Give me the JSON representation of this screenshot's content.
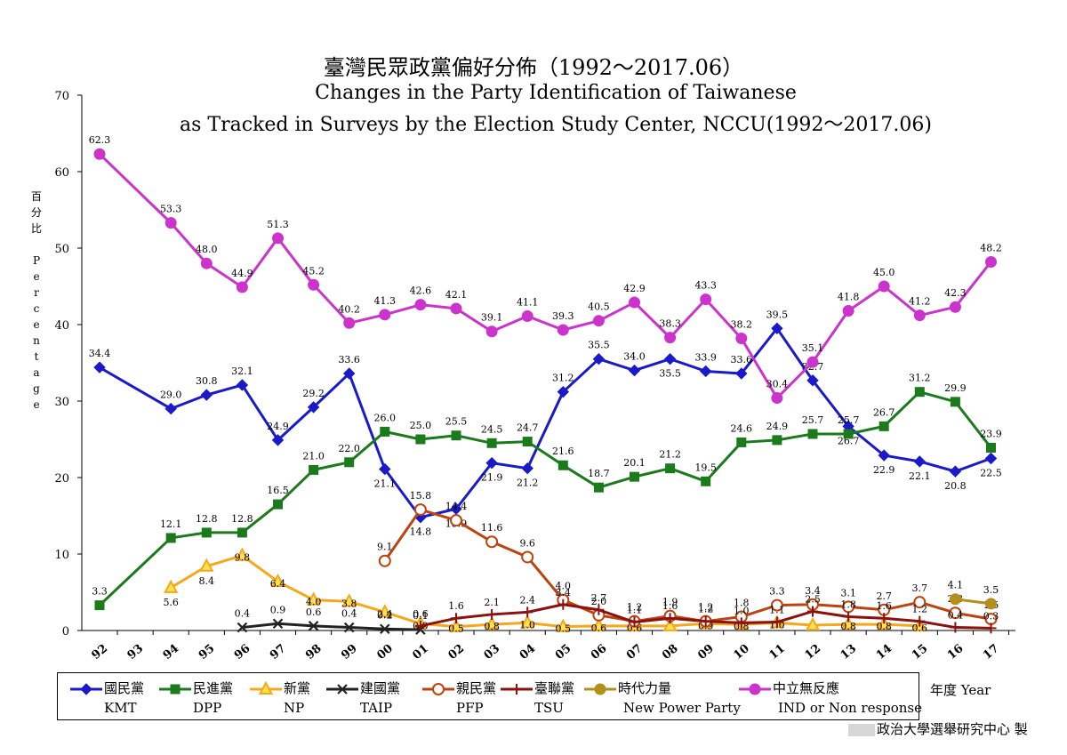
{
  "title_zh": "臺灣民眾政黨偏好分佈（1992～2017.06）",
  "title_en_line1": "Changes in the Party Identification of Taiwanese",
  "title_en_line2": "as Tracked in Surveys by the Election Study Center, NCCU(1992～2017.06)",
  "ylabel_chars": [
    "百",
    "分",
    "比",
    "",
    "P",
    "e",
    "r",
    "c",
    "e",
    "n",
    "t",
    "a",
    "g",
    "e"
  ],
  "year_label": "年度 Year",
  "credit": "政治大學選舉研究中心 製",
  "colors": {
    "KMT": "#1a1aca",
    "DPP": "#1b7a1b",
    "NP": "#f5a81c",
    "TAIP": "#222222",
    "PFP": "#bb4411",
    "TSU": "#8b1010",
    "NPP": "#b38f1c",
    "IND": "#cc33cc"
  },
  "chart_data": {
    "type": "line",
    "title": "Changes in the Party Identification of Taiwanese",
    "ylabel": "百分比 Percentage",
    "xlabel": "年度 Year",
    "ylim": [
      0,
      70
    ],
    "yticks": [
      0,
      10,
      20,
      30,
      40,
      50,
      60,
      70
    ],
    "categories": [
      "92",
      "93",
      "94",
      "95",
      "96",
      "97",
      "98",
      "99",
      "00",
      "01",
      "02",
      "03",
      "04",
      "05",
      "06",
      "07",
      "08",
      "09",
      "10",
      "11",
      "12",
      "13",
      "14",
      "15",
      "16",
      "17"
    ],
    "series": [
      {
        "key": "KMT",
        "name": "國民黨",
        "name_en": "KMT",
        "marker": "diamond",
        "values": [
          34.4,
          null,
          29.0,
          30.8,
          32.1,
          24.9,
          29.2,
          33.6,
          21.1,
          14.8,
          15.9,
          21.9,
          21.2,
          31.2,
          35.5,
          34.0,
          35.5,
          33.9,
          33.6,
          39.5,
          32.7,
          26.7,
          22.9,
          22.1,
          20.8,
          22.5
        ],
        "labels": [
          "34.4",
          "",
          "29.0",
          "30.8",
          "32.1",
          "24.9",
          "29.2",
          "33.6",
          "21.1",
          "14.8",
          "15.9",
          "21.9",
          "21.2",
          "31.2",
          "35.5",
          "34.0",
          "35.5",
          "33.9",
          "33.6",
          "39.5",
          "32.7",
          "26.7",
          "22.9",
          "22.1",
          "20.8",
          "22.5"
        ]
      },
      {
        "key": "DPP",
        "name": "民進黨",
        "name_en": "DPP",
        "marker": "square",
        "values": [
          3.3,
          null,
          12.1,
          12.8,
          12.8,
          16.5,
          21.0,
          22.0,
          26.0,
          25.0,
          25.5,
          24.5,
          24.7,
          21.6,
          18.7,
          20.1,
          21.2,
          19.5,
          24.6,
          24.9,
          25.7,
          25.7,
          26.7,
          31.2,
          29.9,
          23.9
        ],
        "labels": [
          "3.3",
          "",
          "12.1",
          "12.8",
          "12.8",
          "16.5",
          "21.0",
          "22.0",
          "26.0",
          "25.0",
          "25.5",
          "24.5",
          "24.7",
          "21.6",
          "18.7",
          "20.1",
          "21.2",
          "19.5",
          "24.6",
          "24.9",
          "25.7",
          "25.7",
          "26.7",
          "31.2",
          "29.9",
          "23.9"
        ]
      },
      {
        "key": "NP",
        "name": "新黨",
        "name_en": "NP",
        "marker": "triangle",
        "values": [
          null,
          null,
          5.6,
          8.4,
          9.8,
          6.4,
          4.0,
          3.8,
          2.4,
          0.9,
          0.5,
          0.8,
          1.0,
          0.5,
          0.6,
          0.6,
          0.6,
          0.9,
          0.8,
          1.0,
          0.7,
          0.8,
          0.8,
          0.6,
          null,
          null
        ],
        "labels": [
          "",
          "",
          "5.6",
          "8.4",
          "9.8",
          "6.4",
          "4.0",
          "3.8",
          "2.4",
          "0.9",
          "0.5",
          "0.8",
          "1.0",
          "0.5",
          "0.6",
          "0.6",
          "",
          "0.9",
          "0.8",
          "1.0",
          "",
          "0.8",
          "0.8",
          "0.6",
          "",
          ""
        ]
      },
      {
        "key": "TAIP",
        "name": "建國黨",
        "name_en": "TAIP",
        "marker": "x",
        "values": [
          null,
          null,
          null,
          null,
          0.4,
          0.9,
          0.6,
          0.4,
          0.2,
          0.1,
          null,
          null,
          null,
          null,
          null,
          null,
          null,
          null,
          null,
          null,
          null,
          null,
          null,
          null,
          null,
          null
        ],
        "labels": [
          "",
          "",
          "",
          "",
          "0.4",
          "0.9",
          "0.6",
          "0.4",
          "0.2",
          "0.1",
          "",
          "",
          "",
          "",
          "",
          "",
          "",
          "",
          "",
          "",
          "",
          "",
          "",
          "",
          "",
          ""
        ]
      },
      {
        "key": "PFP",
        "name": "親民黨",
        "name_en": "PFP",
        "marker": "circle",
        "values": [
          null,
          null,
          null,
          null,
          null,
          null,
          null,
          null,
          9.1,
          15.8,
          14.4,
          11.6,
          9.6,
          4.0,
          2.0,
          1.2,
          1.9,
          1.2,
          1.8,
          3.3,
          3.4,
          3.1,
          2.7,
          3.7,
          2.3,
          1.5
        ],
        "labels": [
          "",
          "",
          "",
          "",
          "",
          "",
          "",
          "",
          "9.1",
          "15.8",
          "14.4",
          "11.6",
          "9.6",
          "4.0",
          "2.0",
          "1.2",
          "1.9",
          "1.2",
          "1.8",
          "3.3",
          "3.4",
          "3.1",
          "2.7",
          "3.7",
          "2.3",
          "1.5"
        ]
      },
      {
        "key": "TSU",
        "name": "臺聯黨",
        "name_en": "TSU",
        "marker": "plus",
        "values": [
          null,
          null,
          null,
          null,
          null,
          null,
          null,
          null,
          null,
          0.6,
          1.6,
          2.1,
          2.4,
          3.4,
          2.7,
          1.1,
          1.6,
          1.2,
          1.0,
          1.1,
          2.5,
          1.8,
          1.6,
          1.2,
          0.4,
          0.3
        ],
        "labels": [
          "",
          "",
          "",
          "",
          "",
          "",
          "",
          "",
          "",
          "0.6",
          "1.6",
          "2.1",
          "2.4",
          "3.4",
          "2.7",
          "1.1",
          "1.6",
          "1.2",
          "1.0",
          "1.1",
          "2.5",
          "1.8",
          "1.6",
          "1.2",
          "0.4",
          "0.3"
        ]
      },
      {
        "key": "NPP",
        "name": "時代力量",
        "name_en": "New Power Party",
        "marker": "circle-filled",
        "values": [
          null,
          null,
          null,
          null,
          null,
          null,
          null,
          null,
          null,
          null,
          null,
          null,
          null,
          null,
          null,
          null,
          null,
          null,
          null,
          null,
          null,
          null,
          null,
          null,
          4.1,
          3.5
        ],
        "labels": [
          "",
          "",
          "",
          "",
          "",
          "",
          "",
          "",
          "",
          "",
          "",
          "",
          "",
          "",
          "",
          "",
          "",
          "",
          "",
          "",
          "",
          "",
          "",
          "",
          "4.1",
          "3.5"
        ]
      },
      {
        "key": "IND",
        "name": "中立無反應",
        "name_en": "IND or Non response",
        "marker": "circle-filled",
        "values": [
          62.3,
          null,
          53.3,
          48.0,
          44.9,
          51.3,
          45.2,
          40.2,
          41.3,
          42.6,
          42.1,
          39.1,
          41.1,
          39.3,
          40.5,
          42.9,
          38.3,
          43.3,
          38.2,
          30.4,
          35.1,
          41.8,
          45.0,
          41.2,
          42.3,
          48.2
        ],
        "labels": [
          "62.3",
          "",
          "53.3",
          "48.0",
          "44.9",
          "51.3",
          "45.2",
          "40.2",
          "41.3",
          "42.6",
          "42.1",
          "39.1",
          "41.1",
          "39.3",
          "40.5",
          "42.9",
          "38.3",
          "43.3",
          "38.2",
          "30.4",
          "35.1",
          "41.8",
          "45.0",
          "41.2",
          "42.3",
          "48.2"
        ]
      }
    ]
  }
}
